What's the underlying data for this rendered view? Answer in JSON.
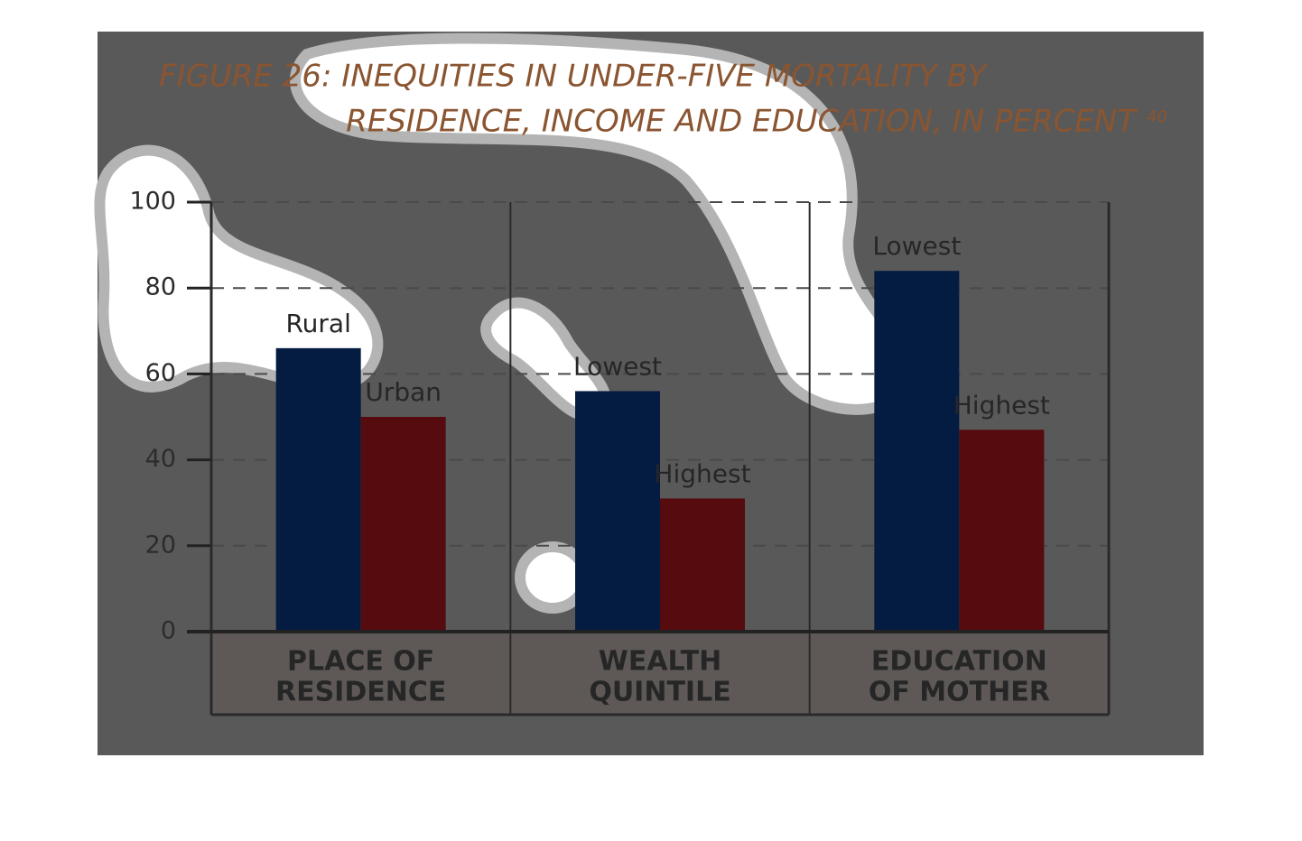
{
  "chart_data": {
    "type": "grouped-bar",
    "title_lines": [
      "FIGURE 26: INEQUITIES IN UNDER-FIVE MORTALITY BY",
      "RESIDENCE, INCOME AND EDUCATION, IN PERCENT"
    ],
    "title_note": "40",
    "groups": [
      {
        "name_lines": [
          "PLACE OF",
          "RESIDENCE"
        ],
        "labels": [
          "Rural",
          "Urban"
        ],
        "values": [
          66,
          50
        ]
      },
      {
        "name_lines": [
          "WEALTH",
          "QUINTILE"
        ],
        "labels": [
          "Lowest",
          "Highest"
        ],
        "values": [
          56,
          31
        ]
      },
      {
        "name_lines": [
          "EDUCATION",
          "OF MOTHER"
        ],
        "labels": [
          "Lowest",
          "Highest"
        ],
        "values": [
          84,
          47
        ]
      }
    ],
    "colors": [
      "#051c42",
      "#560b0e"
    ],
    "ylim": [
      0,
      100
    ],
    "yticks": [
      0,
      20,
      40,
      60,
      80,
      100
    ],
    "grid": true
  }
}
